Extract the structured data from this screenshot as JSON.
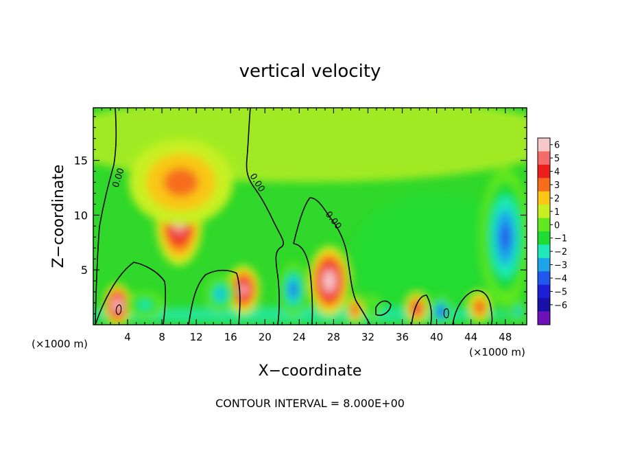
{
  "chart_data": {
    "type": "heatmap",
    "title": "vertical velocity",
    "xlabel": "X−coordinate",
    "ylabel": "Z−coordinate",
    "x_unit_left": "(×1000 m)",
    "x_unit_right": "(×1000 m)",
    "footer": "CONTOUR INTERVAL = 8.000E+00",
    "xlim": [
      0,
      50.5
    ],
    "ylim": [
      0,
      19.8
    ],
    "x_ticks": [
      4,
      8,
      12,
      16,
      20,
      24,
      28,
      32,
      36,
      40,
      44,
      48
    ],
    "x_tick_labels": [
      "4",
      "8",
      "12",
      "16",
      "20",
      "24",
      "28",
      "32",
      "36",
      "40",
      "44",
      "48"
    ],
    "y_ticks": [
      5,
      10,
      15
    ],
    "y_tick_labels": [
      "5",
      "10",
      "15"
    ],
    "colorbar": {
      "ticks": [
        6,
        5,
        4,
        3,
        2,
        1,
        0,
        -1,
        -2,
        -3,
        -4,
        -5,
        -6
      ],
      "labels": [
        "6",
        "5",
        "4",
        "3",
        "2",
        "1",
        "0",
        "−1",
        "−2",
        "−3",
        "−4",
        "−5",
        "−6"
      ],
      "colors": [
        "#f7c8c8",
        "#f36b6b",
        "#ee1e1e",
        "#f76d1c",
        "#f9c615",
        "#c8f021",
        "#62e81e",
        "#1fdc33",
        "#1fe9b8",
        "#1ea4e9",
        "#2058ef",
        "#1c1fd6",
        "#1a10a8",
        "#6e11b8"
      ]
    },
    "contour_labels": [
      "0.00",
      "0.00",
      "0.00"
    ],
    "features": [
      {
        "x": 2.8,
        "z": 1.8,
        "value": 6.5,
        "sx": 1.0,
        "sz": 1.4
      },
      {
        "x": 10.0,
        "z": 9.3,
        "value": 5.6,
        "sx": 1.7,
        "sz": 2.8
      },
      {
        "x": 10.2,
        "z": 13.0,
        "value": 2.2,
        "sx": 3.8,
        "sz": 2.8
      },
      {
        "x": 17.5,
        "z": 3.2,
        "value": 5.8,
        "sx": 1.2,
        "sz": 1.6
      },
      {
        "x": 27.5,
        "z": 4.0,
        "value": 6.3,
        "sx": 1.5,
        "sz": 2.3
      },
      {
        "x": 30.5,
        "z": 1.4,
        "value": 4.0,
        "sx": 0.6,
        "sz": 0.9
      },
      {
        "x": 37.7,
        "z": 1.5,
        "value": 4.2,
        "sx": 0.8,
        "sz": 1.0
      },
      {
        "x": 45.0,
        "z": 1.6,
        "value": 4.0,
        "sx": 0.8,
        "sz": 1.0
      },
      {
        "x": 23.3,
        "z": 3.2,
        "value": -4.2,
        "sx": 1.0,
        "sz": 1.8
      },
      {
        "x": 14.8,
        "z": 2.8,
        "value": -3.2,
        "sx": 1.1,
        "sz": 1.2
      },
      {
        "x": 6.0,
        "z": 1.8,
        "value": -3.0,
        "sx": 1.4,
        "sz": 0.9
      },
      {
        "x": 40.5,
        "z": 1.2,
        "value": -5.5,
        "sx": 0.8,
        "sz": 1.0
      },
      {
        "x": 48.0,
        "z": 8.0,
        "value": -4.2,
        "sx": 1.8,
        "sz": 4.5
      },
      {
        "x": 32.5,
        "z": 1.5,
        "value": -2.0,
        "sx": 0.6,
        "sz": 0.8
      },
      {
        "x": 49.5,
        "z": 1.2,
        "value": -4.0,
        "sx": 0.5,
        "sz": 0.8
      }
    ]
  }
}
